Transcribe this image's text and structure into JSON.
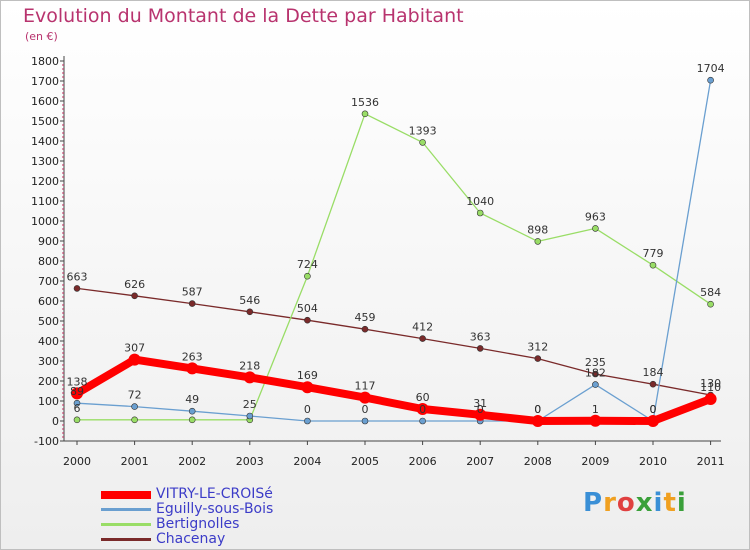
{
  "title": "Evolution du Montant de la Dette par Habitant",
  "subtitle": "(en €)",
  "logo": {
    "letters": [
      "P",
      "r",
      "o",
      "x",
      "i",
      "t",
      "i"
    ],
    "colors": [
      "#3a8fd6",
      "#f0a020",
      "#e04040",
      "#3aa03a",
      "#3a8fd6",
      "#f0a020",
      "#3aa03a"
    ]
  },
  "chart_data": {
    "type": "line",
    "title": "Evolution du Montant de la Dette par Habitant",
    "ylabel": "(en €)",
    "xlabel": "",
    "x": [
      "2000",
      "2001",
      "2002",
      "2003",
      "2004",
      "2005",
      "2006",
      "2007",
      "2008",
      "2009",
      "2010",
      "2011"
    ],
    "ylim": [
      -100,
      1800
    ],
    "yticks": [
      "1800",
      "1700",
      "1600",
      "1500",
      "1400",
      "1300",
      "1200",
      "1100",
      "1000",
      "900",
      "800",
      "700",
      "600",
      "500",
      "400",
      "300",
      "200",
      "100",
      "0",
      "-100"
    ],
    "grid": false,
    "legend_position": "bottom-left",
    "series": [
      {
        "name": "VITRY-LE-CROISé",
        "color": "#ff0000",
        "values": [
          138,
          307,
          263,
          218,
          169,
          117,
          60,
          31,
          0,
          1,
          0,
          110
        ],
        "labels": [
          "138",
          "307",
          "263",
          "218",
          "169",
          "117",
          "60",
          "31",
          "0",
          "1",
          "0",
          "110"
        ]
      },
      {
        "name": "Eguilly-sous-Bois",
        "color": "#6a9fd0",
        "values": [
          89,
          72,
          49,
          25,
          0,
          0,
          0,
          0,
          0,
          182,
          0,
          1704
        ],
        "labels": [
          "89",
          "72",
          "49",
          "25",
          "0",
          "0",
          "0",
          "0",
          "0",
          "182",
          "0",
          "1704"
        ]
      },
      {
        "name": "Bertignolles",
        "color": "#99dd66",
        "values": [
          6,
          6,
          6,
          6,
          724,
          1536,
          1393,
          1040,
          898,
          963,
          779,
          584
        ],
        "labels": [
          "6",
          "",
          "",
          "",
          "724",
          "1536",
          "1393",
          "1040",
          "898",
          "963",
          "779",
          "584"
        ]
      },
      {
        "name": "Chacenay",
        "color": "#7a2a2a",
        "values": [
          663,
          626,
          587,
          546,
          504,
          459,
          412,
          363,
          312,
          235,
          184,
          130
        ],
        "labels": [
          "663",
          "626",
          "587",
          "546",
          "504",
          "459",
          "412",
          "363",
          "312",
          "235",
          "184",
          "130"
        ]
      }
    ]
  }
}
